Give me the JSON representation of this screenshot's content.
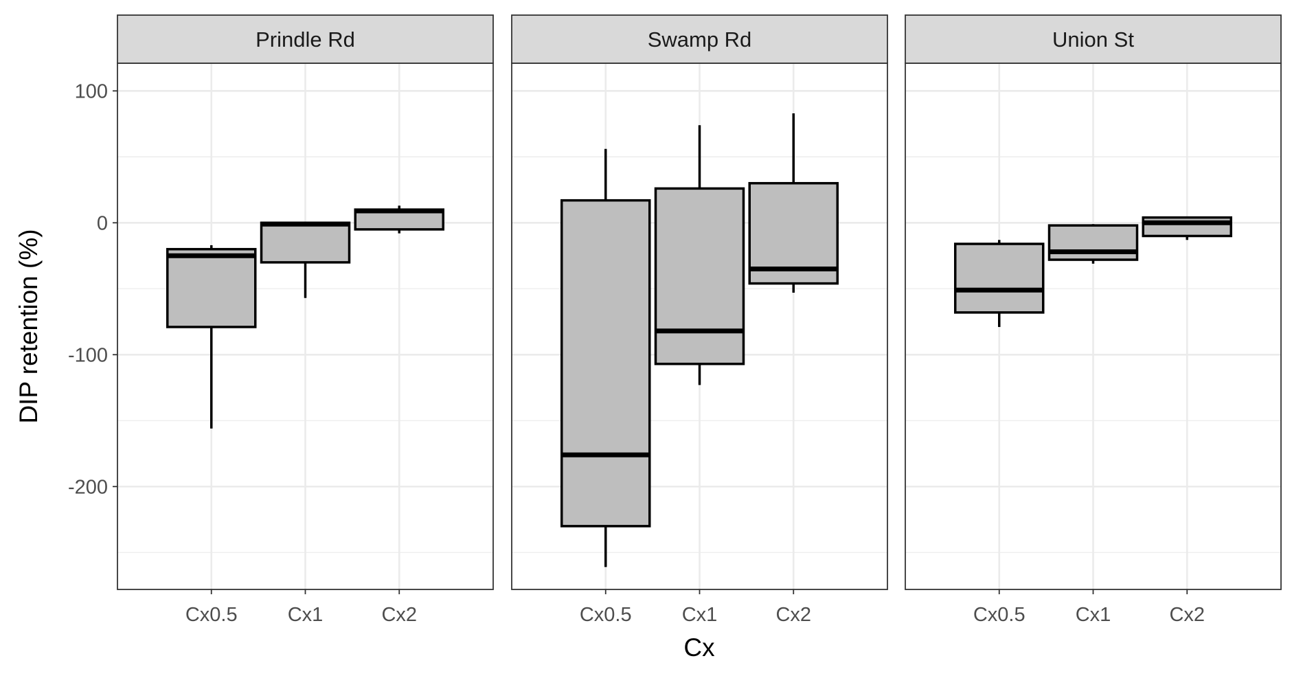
{
  "chart_data": {
    "type": "boxplot",
    "xlabel": "Cx",
    "ylabel": "DIP retention (%)",
    "categories": [
      "Cx0.5",
      "Cx1",
      "Cx2"
    ],
    "y_ticks": [
      100,
      0,
      -100,
      -200
    ],
    "y_tick_labels": [
      "100",
      "0",
      "-100",
      "-200"
    ],
    "ylim": [
      -278,
      121
    ],
    "grid": true,
    "fill_color": "#bebebe",
    "facets": [
      {
        "name": "Prindle Rd",
        "boxes": [
          {
            "category": "Cx0.5",
            "min": -156,
            "q1": -79,
            "median": -25,
            "q3": -20,
            "max": -17
          },
          {
            "category": "Cx1",
            "min": -57,
            "q1": -30,
            "median": -1,
            "q3": 0,
            "max": 0
          },
          {
            "category": "Cx2",
            "min": -8,
            "q1": -5,
            "median": 9,
            "q3": 10,
            "max": 13
          }
        ]
      },
      {
        "name": "Swamp Rd",
        "boxes": [
          {
            "category": "Cx0.5",
            "min": -261,
            "q1": -230,
            "median": -176,
            "q3": 17,
            "max": 56
          },
          {
            "category": "Cx1",
            "min": -123,
            "q1": -107,
            "median": -82,
            "q3": 26,
            "max": 74
          },
          {
            "category": "Cx2",
            "min": -53,
            "q1": -46,
            "median": -35,
            "q3": 30,
            "max": 83
          }
        ]
      },
      {
        "name": "Union St",
        "boxes": [
          {
            "category": "Cx0.5",
            "min": -79,
            "q1": -68,
            "median": -51,
            "q3": -16,
            "max": -13
          },
          {
            "category": "Cx1",
            "min": -31,
            "q1": -28,
            "median": -22,
            "q3": -2,
            "max": -1
          },
          {
            "category": "Cx2",
            "min": -13,
            "q1": -10,
            "median": 0,
            "q3": 4,
            "max": 4
          }
        ]
      }
    ]
  }
}
